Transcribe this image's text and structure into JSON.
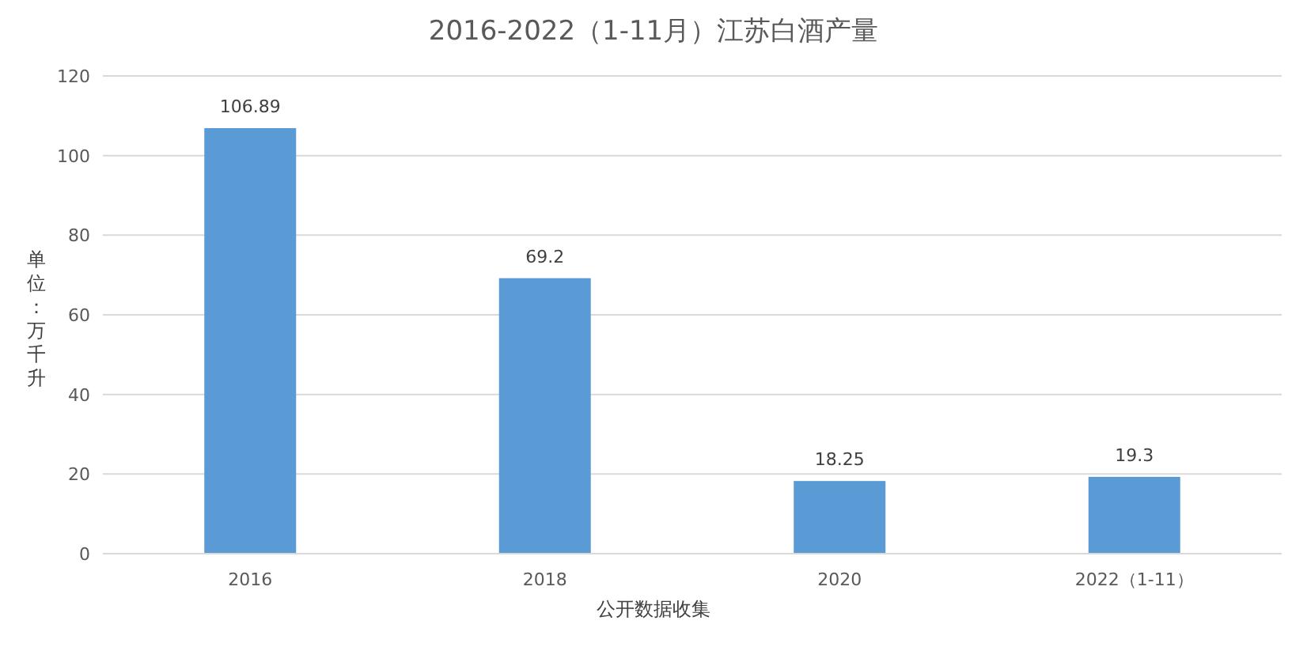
{
  "chart_data": {
    "type": "bar",
    "title": "2016-2022（1-11月）江苏白酒产量",
    "ylabel": "单位：万千升",
    "categories": [
      "2016",
      "2018",
      "2020",
      "2022（1-11）"
    ],
    "values": [
      106.89,
      69.2,
      18.25,
      19.3
    ],
    "color": "#5b9bd5",
    "ylim": [
      0,
      120
    ],
    "yticks": [
      0,
      20,
      40,
      60,
      80,
      100,
      120
    ],
    "grid": "y",
    "data_labels": true,
    "annotations": [
      "公开数据收集"
    ]
  }
}
